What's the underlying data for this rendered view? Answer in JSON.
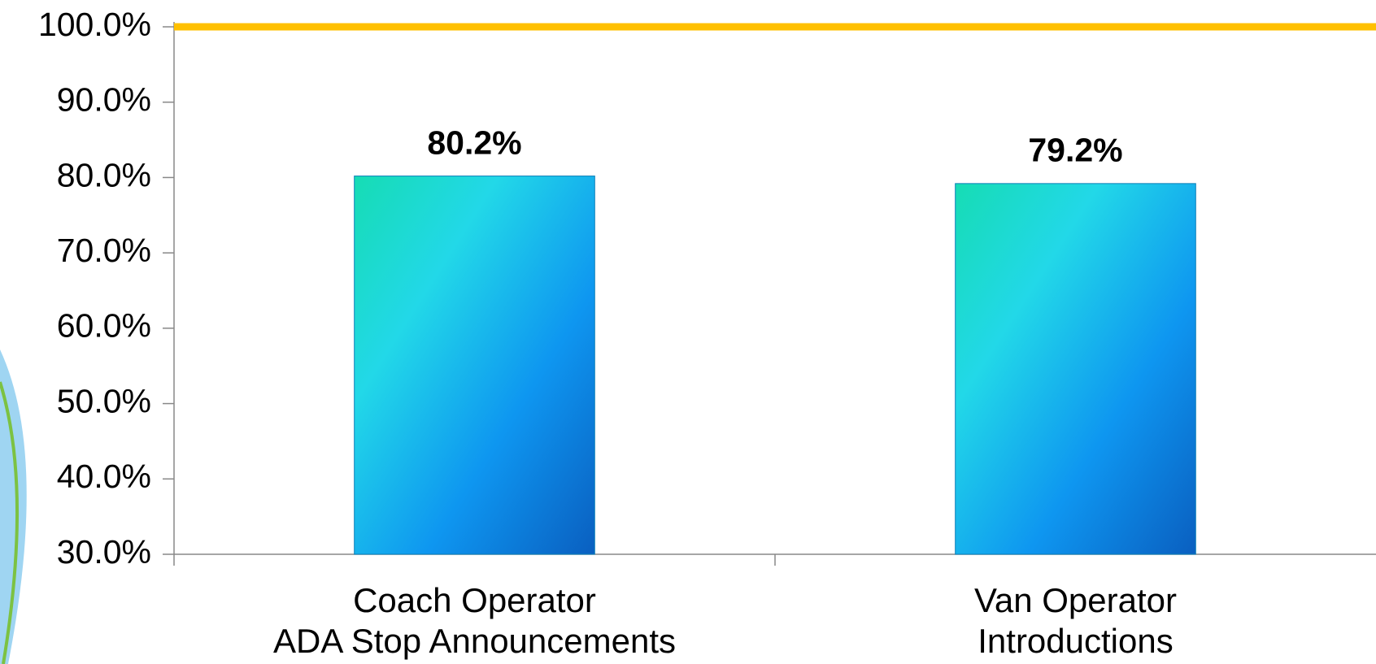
{
  "chart_data": {
    "type": "bar",
    "categories": [
      "Coach Operator\nADA Stop Announcements",
      "Van Operator\nIntroductions"
    ],
    "values": [
      80.2,
      79.2
    ],
    "value_labels": [
      "80.2%",
      "79.2%"
    ],
    "color": "#12a9ef",
    "ylim": [
      30,
      100
    ],
    "yticks": [
      {
        "value": 30,
        "label": "30.0%"
      },
      {
        "value": 40,
        "label": "40.0%"
      },
      {
        "value": 50,
        "label": "50.0%"
      },
      {
        "value": 60,
        "label": "60.0%"
      },
      {
        "value": 70,
        "label": "70.0%"
      },
      {
        "value": 80,
        "label": "80.0%"
      },
      {
        "value": 90,
        "label": "90.0%"
      },
      {
        "value": 100,
        "label": "100.0%"
      }
    ],
    "grid": false,
    "target_line": {
      "value": 100,
      "color": "#ffc000"
    }
  }
}
